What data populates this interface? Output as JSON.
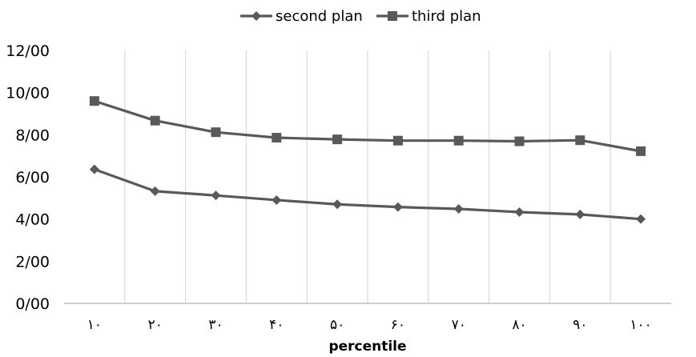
{
  "chart_data": {
    "type": "line",
    "title": "",
    "xlabel": "percentile",
    "ylabel": "",
    "categories": [
      "١٠",
      "٢٠",
      "٣٠",
      "۴٠",
      "۵٠",
      "۶٠",
      "٧٠",
      "٨٠",
      "٩٠",
      "١٠٠"
    ],
    "y_ticks": [
      "0/00",
      "2/00",
      "4/00",
      "6/00",
      "8/00",
      "10/00",
      "12/00"
    ],
    "ylim": [
      0,
      12
    ],
    "grid": "vertical",
    "legend_position": "top",
    "series": [
      {
        "name": "second plan",
        "marker": "diamond",
        "color": "#595959",
        "values": [
          6.36,
          5.32,
          5.12,
          4.9,
          4.7,
          4.57,
          4.48,
          4.33,
          4.22,
          4.0
        ]
      },
      {
        "name": "third plan",
        "marker": "square",
        "color": "#595959",
        "values": [
          9.6,
          8.67,
          8.12,
          7.86,
          7.78,
          7.72,
          7.72,
          7.69,
          7.74,
          7.22
        ]
      }
    ]
  }
}
